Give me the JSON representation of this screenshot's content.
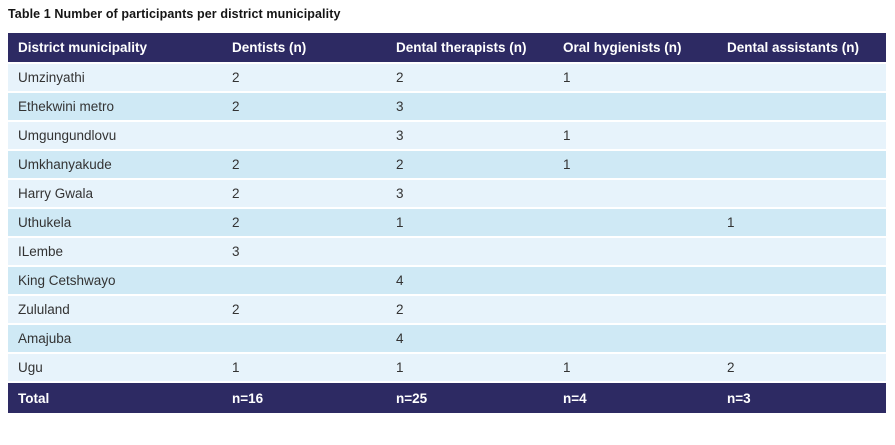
{
  "caption": "Table 1 Number of participants per district municipality",
  "table": {
    "columns": [
      "District municipality",
      "Dentists (n)",
      "Dental therapists (n)",
      "Oral hygienists (n)",
      "Dental assistants (n)"
    ],
    "rows": [
      [
        "Umzinyathi",
        "2",
        "2",
        "1",
        ""
      ],
      [
        "Ethekwini metro",
        "2",
        "3",
        "",
        ""
      ],
      [
        "Umgungundlovu",
        "",
        "3",
        "1",
        ""
      ],
      [
        "Umkhanyakude",
        "2",
        "2",
        "1",
        ""
      ],
      [
        "Harry Gwala",
        "2",
        "3",
        "",
        ""
      ],
      [
        "Uthukela",
        "2",
        "1",
        "",
        "1"
      ],
      [
        "ILembe",
        "3",
        "",
        "",
        ""
      ],
      [
        "King Cetshwayo",
        "",
        "4",
        "",
        ""
      ],
      [
        "Zululand",
        "2",
        "2",
        "",
        ""
      ],
      [
        "Amajuba",
        "",
        "4",
        "",
        ""
      ],
      [
        "Ugu",
        "1",
        "1",
        "1",
        "2"
      ]
    ],
    "total": [
      "Total",
      "n=16",
      "n=25",
      "n=4",
      "n=3"
    ]
  },
  "colors": {
    "header_bg": "#2d2a63",
    "row_light": "#e7f3fb",
    "row_dark": "#cfe9f5",
    "header_text": "#ffffff",
    "body_text": "#333333"
  }
}
